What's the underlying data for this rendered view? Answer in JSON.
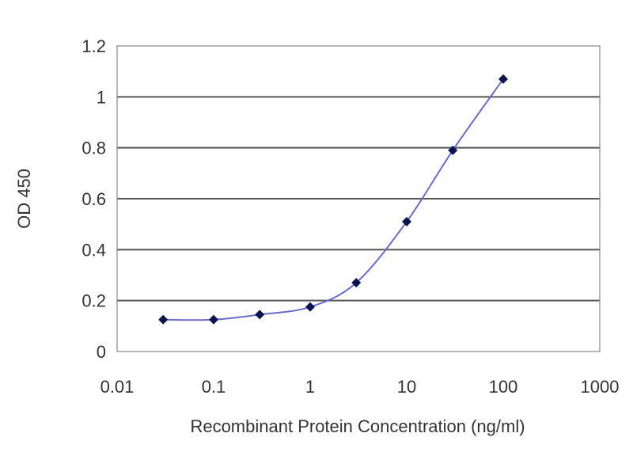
{
  "chart_data": {
    "type": "line",
    "title": "",
    "xlabel": "Recombinant Protein Concentration (ng/ml)",
    "ylabel": "OD 450",
    "x_scale": "log",
    "xlim": [
      0.01,
      1000
    ],
    "ylim": [
      0,
      1.2
    ],
    "x_ticks": [
      "0.01",
      "0.1",
      "1",
      "10",
      "100",
      "1000"
    ],
    "y_ticks": [
      "0",
      "0.2",
      "0.4",
      "0.6",
      "0.8",
      "1",
      "1.2"
    ],
    "grid": "horizontal",
    "colors": {
      "line": "#6b6bcc",
      "marker": "#0a1450",
      "grid": "#555555",
      "frame": "#888888"
    },
    "series": [
      {
        "x": [
          0.03,
          0.1,
          0.3,
          1,
          3,
          10,
          30,
          100
        ],
        "y": [
          0.125,
          0.125,
          0.145,
          0.175,
          0.27,
          0.51,
          0.79,
          1.07
        ]
      }
    ]
  }
}
